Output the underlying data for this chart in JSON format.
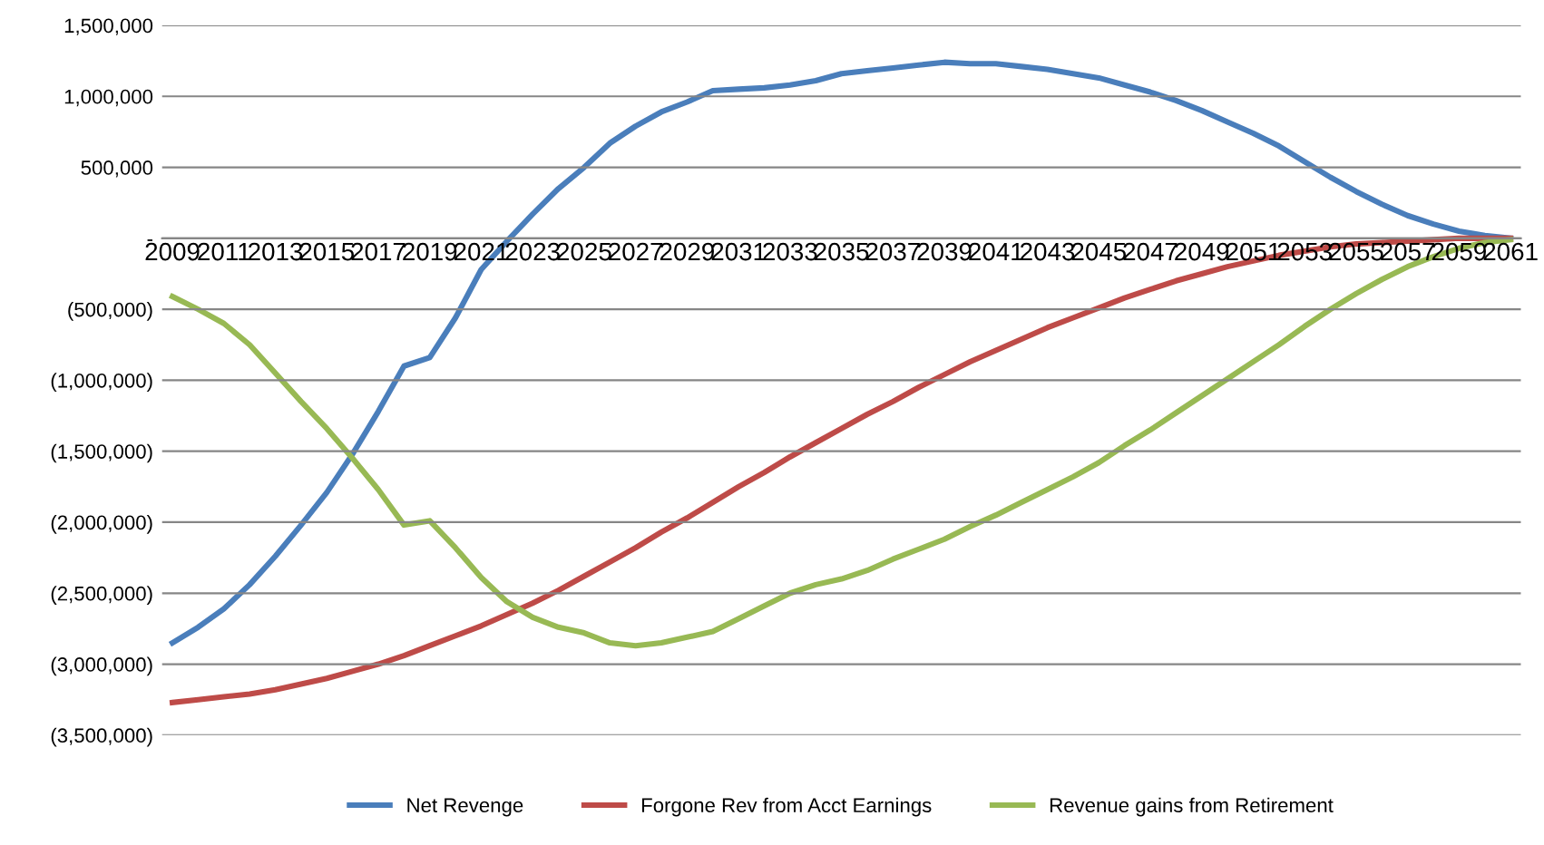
{
  "chart_data": {
    "type": "line",
    "categories": [
      "2009",
      null,
      "2011",
      null,
      "2013",
      null,
      "2015",
      null,
      "2017",
      null,
      "2019",
      null,
      "2021",
      null,
      "2023",
      null,
      "2025",
      null,
      "2027",
      null,
      "2029",
      null,
      "2031",
      null,
      "2033",
      null,
      "2035",
      null,
      "2037",
      null,
      "2039",
      null,
      "2041",
      null,
      "2043",
      null,
      "2045",
      null,
      "2047",
      null,
      "2049",
      null,
      "2051",
      null,
      "2053",
      null,
      "2055",
      null,
      "2057",
      null,
      "2059",
      null,
      "2061"
    ],
    "series": [
      {
        "name": "Net Revenge",
        "color": "#4a7ebb",
        "values": [
          -2850000,
          -2740000,
          -2610000,
          -2440000,
          -2240000,
          -2020000,
          -1790000,
          -1520000,
          -1220000,
          -900000,
          -840000,
          -560000,
          -220000,
          -20000,
          170000,
          350000,
          500000,
          670000,
          790000,
          890000,
          960000,
          1040000,
          1050000,
          1060000,
          1080000,
          1110000,
          1160000,
          1180000,
          1200000,
          1220000,
          1240000,
          1230000,
          1230000,
          1210000,
          1190000,
          1160000,
          1130000,
          1080000,
          1030000,
          970000,
          900000,
          820000,
          740000,
          650000,
          540000,
          430000,
          330000,
          240000,
          160000,
          100000,
          50000,
          20000,
          0
        ]
      },
      {
        "name": "Forgone Rev from Acct Earnings",
        "color": "#be4b48",
        "values": [
          -3270000,
          -3250000,
          -3230000,
          -3210000,
          -3180000,
          -3140000,
          -3100000,
          -3050000,
          -3000000,
          -2940000,
          -2870000,
          -2800000,
          -2730000,
          -2650000,
          -2570000,
          -2480000,
          -2380000,
          -2280000,
          -2180000,
          -2070000,
          -1970000,
          -1860000,
          -1750000,
          -1650000,
          -1540000,
          -1440000,
          -1340000,
          -1240000,
          -1150000,
          -1050000,
          -960000,
          -870000,
          -790000,
          -710000,
          -630000,
          -560000,
          -490000,
          -420000,
          -360000,
          -300000,
          -250000,
          -200000,
          -160000,
          -120000,
          -90000,
          -60000,
          -40000,
          -30000,
          -20000,
          -10000,
          0,
          0,
          0
        ]
      },
      {
        "name": "Revenue gains from Retirement",
        "color": "#98b954",
        "values": [
          -410000,
          -500000,
          -600000,
          -750000,
          -950000,
          -1150000,
          -1340000,
          -1550000,
          -1770000,
          -2020000,
          -1990000,
          -2180000,
          -2390000,
          -2560000,
          -2670000,
          -2740000,
          -2780000,
          -2850000,
          -2870000,
          -2850000,
          -2810000,
          -2770000,
          -2680000,
          -2590000,
          -2500000,
          -2440000,
          -2400000,
          -2340000,
          -2260000,
          -2190000,
          -2120000,
          -2030000,
          -1950000,
          -1860000,
          -1770000,
          -1680000,
          -1580000,
          -1460000,
          -1350000,
          -1230000,
          -1110000,
          -990000,
          -870000,
          -750000,
          -620000,
          -500000,
          -390000,
          -290000,
          -200000,
          -130000,
          -70000,
          -30000,
          -10000
        ]
      }
    ],
    "ylim": [
      -3500000,
      1500000
    ],
    "yticks": [
      {
        "value": -3500000,
        "label": "(3,500,000)"
      },
      {
        "value": -3000000,
        "label": "(3,000,000)"
      },
      {
        "value": -2500000,
        "label": "(2,500,000)"
      },
      {
        "value": -2000000,
        "label": "(2,000,000)"
      },
      {
        "value": -1500000,
        "label": "(1,500,000)"
      },
      {
        "value": -1000000,
        "label": "(1,000,000)"
      },
      {
        "value": -500000,
        "label": "(500,000)"
      },
      {
        "value": 0,
        "label": "-"
      },
      {
        "value": 500000,
        "label": "500,000"
      },
      {
        "value": 1000000,
        "label": "1,000,000"
      },
      {
        "value": 1500000,
        "label": "1,500,000"
      }
    ],
    "grid": "y",
    "legend": "bottom",
    "marker": "none",
    "line_style": "solid"
  }
}
